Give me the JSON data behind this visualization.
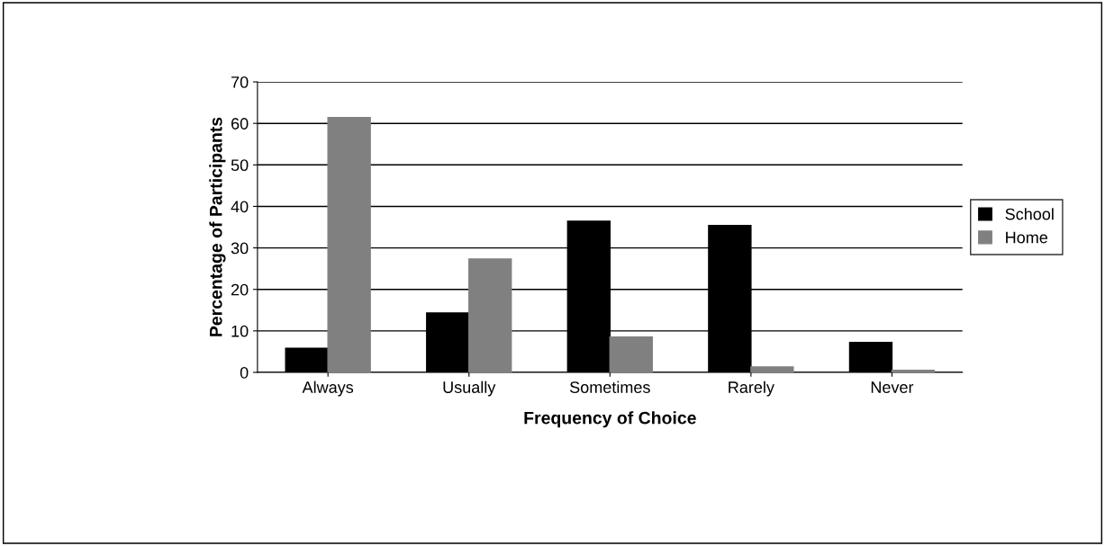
{
  "chart_data": {
    "type": "bar",
    "xlabel": "Frequency of Choice",
    "ylabel": "Percentage of Participants",
    "categories": [
      "Always",
      "Usually",
      "Sometimes",
      "Rarely",
      "Never"
    ],
    "series": [
      {
        "name": "School",
        "color": "#000000",
        "values": [
          5.8,
          14.3,
          36.4,
          35.4,
          7.2
        ]
      },
      {
        "name": "Home",
        "color": "#808080",
        "values": [
          61.4,
          27.3,
          8.5,
          1.3,
          0.5
        ]
      }
    ],
    "ylim": [
      0,
      70
    ],
    "yticks": [
      0,
      10,
      20,
      30,
      40,
      50,
      60,
      70
    ],
    "grid": "y",
    "legend": "right"
  }
}
